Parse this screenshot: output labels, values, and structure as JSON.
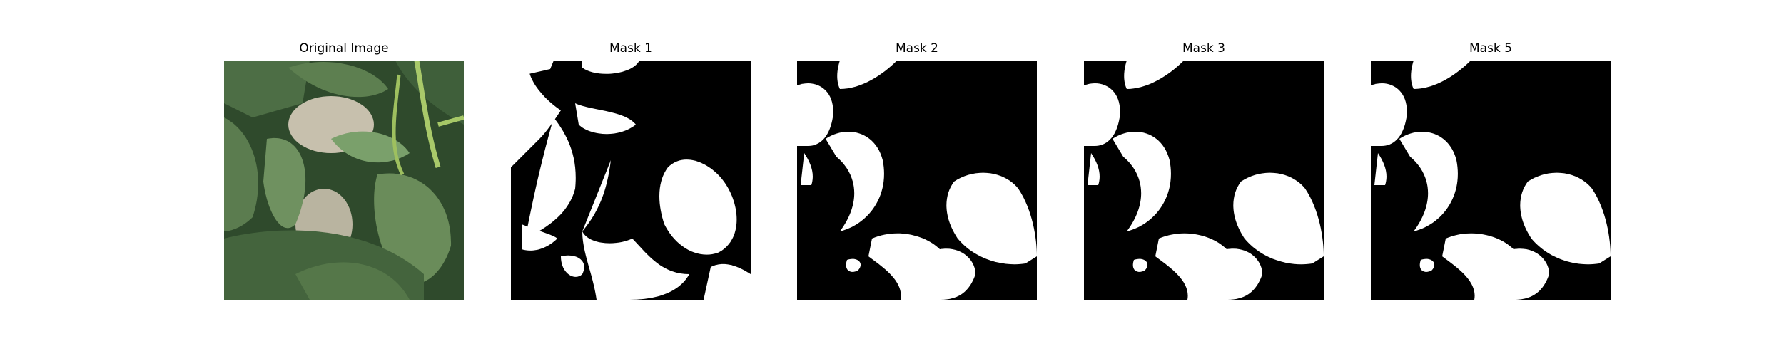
{
  "figure": {
    "panels": [
      {
        "title": "Original Image",
        "kind": "photo",
        "subject": "pepper-plant-leaves"
      },
      {
        "title": "Mask 1",
        "kind": "binary-mask"
      },
      {
        "title": "Mask 2",
        "kind": "binary-mask"
      },
      {
        "title": "Mask 3",
        "kind": "binary-mask"
      },
      {
        "title": "Mask 5",
        "kind": "binary-mask"
      }
    ],
    "colors": {
      "mask_foreground": "#ffffff",
      "mask_background": "#000000",
      "leaf_dark": "#3c5a38",
      "leaf_light": "#6f9160"
    }
  }
}
